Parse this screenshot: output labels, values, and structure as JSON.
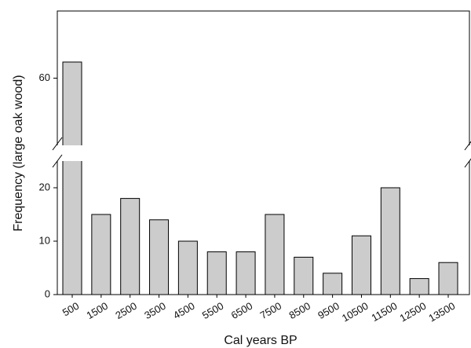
{
  "chart_data": {
    "type": "bar",
    "x_label": "Cal years BP",
    "y_label": "Frequency (large oak wood)",
    "categories": [
      "500",
      "1500",
      "2500",
      "3500",
      "4500",
      "5500",
      "6500",
      "7500",
      "8500",
      "9500",
      "10500",
      "11500",
      "12500",
      "13500"
    ],
    "values": [
      63,
      15,
      18,
      14,
      10,
      8,
      8,
      15,
      7,
      4,
      11,
      20,
      3,
      6
    ],
    "color": "#cccccc",
    "ylim": [
      0,
      72.5
    ],
    "axis_break": [
      25,
      47.5
    ],
    "yticks": [
      0,
      10,
      20,
      60
    ]
  }
}
